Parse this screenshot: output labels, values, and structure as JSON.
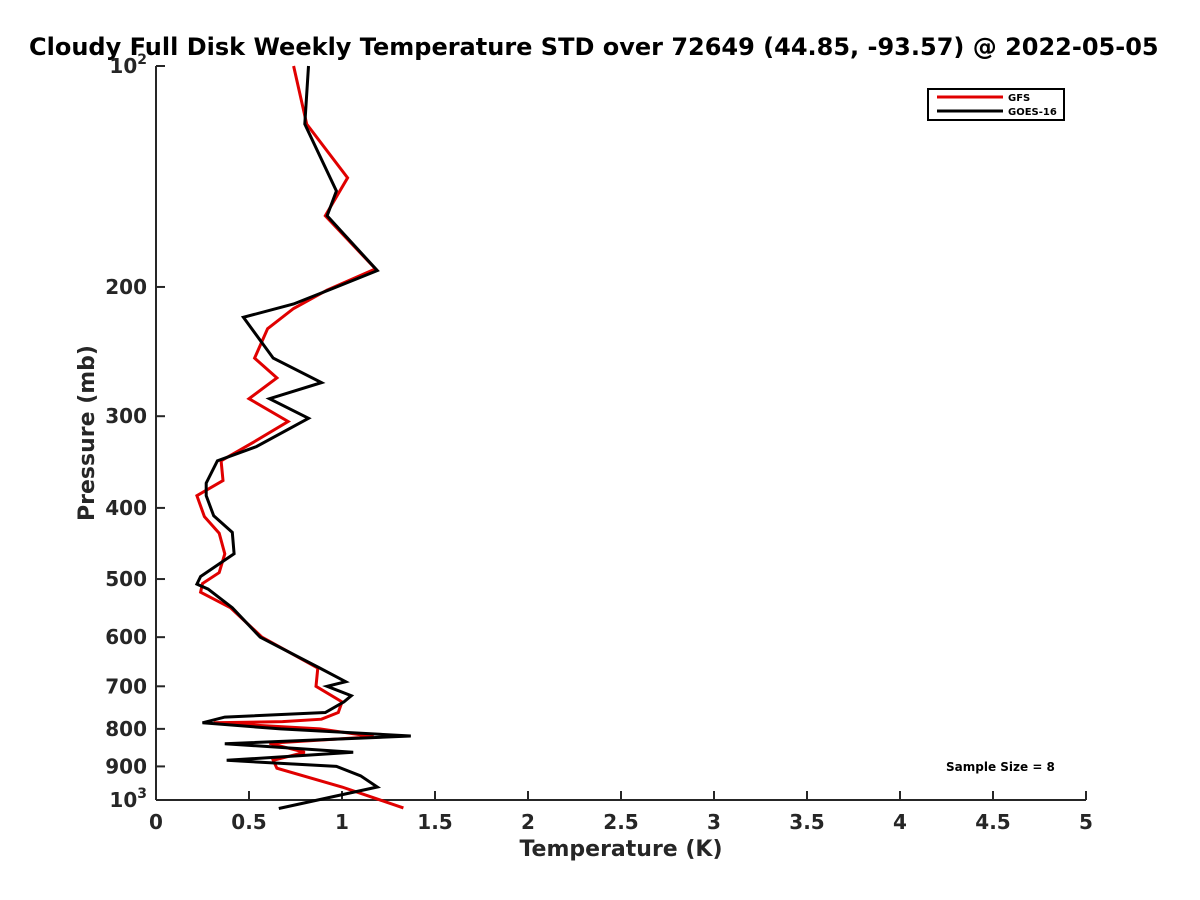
{
  "chart_data": {
    "type": "line",
    "title": "Cloudy Full Disk Weekly Temperature STD over 72649 (44.85, -93.57) @ 2022-05-05",
    "xlabel": "Temperature (K)",
    "ylabel": "Pressure (mb)",
    "xlim": [
      0,
      5
    ],
    "ylim": [
      100,
      1000
    ],
    "y_scale": "log",
    "y_reversed": true,
    "grid": false,
    "legend_position": "top-right",
    "x_ticks": [
      0,
      0.5,
      1,
      1.5,
      2,
      2.5,
      3,
      3.5,
      4,
      4.5,
      5
    ],
    "x_tick_labels": [
      "0",
      "0.5",
      "1",
      "1.5",
      "2",
      "2.5",
      "3",
      "3.5",
      "4",
      "4.5",
      "5"
    ],
    "y_ticks": [
      100,
      200,
      300,
      400,
      500,
      600,
      700,
      800,
      900,
      1000
    ],
    "y_tick_labels": [
      "10^2",
      "200",
      "300",
      "400",
      "500",
      "600",
      "700",
      "800",
      "900",
      "10^3"
    ],
    "series": [
      {
        "name": "GFS",
        "color": "#e00000",
        "x": [
          0.74,
          0.81,
          1.03,
          0.91,
          1.18,
          0.92,
          0.74,
          0.6,
          0.53,
          0.65,
          0.5,
          0.71,
          0.52,
          0.35,
          0.36,
          0.22,
          0.26,
          0.34,
          0.37,
          0.34,
          0.25,
          0.24,
          0.4,
          0.57,
          0.87,
          0.86,
          1.0,
          0.98,
          0.89,
          0.68,
          0.31,
          0.88,
          1.17,
          0.61,
          0.8,
          0.63,
          0.65,
          1.0,
          1.33
        ],
        "y": [
          100,
          120,
          142,
          160,
          189,
          202,
          214,
          228,
          250,
          266,
          284,
          305,
          326,
          345,
          367,
          385,
          411,
          433,
          462,
          490,
          507,
          521,
          547,
          600,
          661,
          700,
          735,
          760,
          776,
          782,
          785,
          800,
          820,
          837,
          861,
          883,
          905,
          960,
          1025
        ]
      },
      {
        "name": "GOES-16",
        "color": "#000000",
        "x": [
          0.82,
          0.8,
          0.97,
          0.92,
          1.19,
          0.95,
          0.74,
          0.47,
          0.63,
          0.89,
          0.61,
          0.82,
          0.54,
          0.33,
          0.27,
          0.27,
          0.31,
          0.41,
          0.42,
          0.24,
          0.22,
          0.28,
          0.41,
          0.56,
          0.88,
          1.02,
          0.92,
          1.05,
          1.01,
          0.91,
          0.37,
          0.25,
          0.67,
          1.37,
          0.37,
          1.06,
          0.38,
          0.97,
          1.1,
          1.19,
          0.66
        ],
        "y": [
          100,
          120,
          148,
          160,
          190,
          201,
          211,
          220,
          250,
          270,
          284,
          302,
          330,
          345,
          370,
          385,
          410,
          432,
          462,
          496,
          508,
          516,
          547,
          600,
          661,
          690,
          700,
          721,
          735,
          760,
          771,
          785,
          800,
          818,
          838,
          861,
          883,
          900,
          927,
          960,
          1027
        ]
      }
    ],
    "legend_entries": [
      "GFS",
      "GOES-16"
    ],
    "annotation": "Sample Size = 8"
  }
}
